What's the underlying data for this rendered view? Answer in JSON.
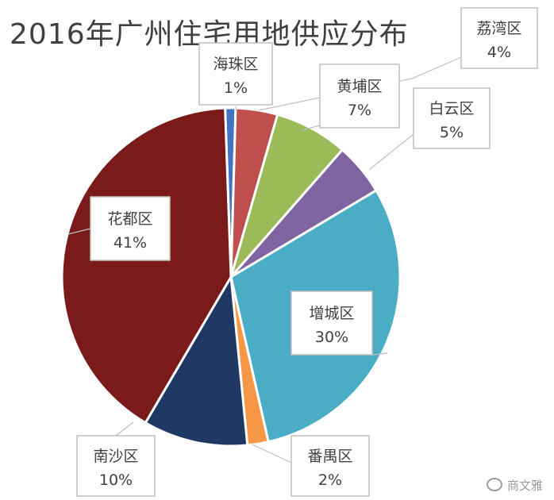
{
  "chart_data": {
    "type": "pie",
    "title": "2016年广州住宅用地供应分布",
    "categories": [
      "海珠区",
      "荔湾区",
      "黄埔区",
      "白云区",
      "增城区",
      "番禺区",
      "南沙区",
      "花都区"
    ],
    "values": [
      1,
      4,
      7,
      5,
      30,
      2,
      10,
      41
    ],
    "value_labels": [
      "1%",
      "4%",
      "7%",
      "5%",
      "30%",
      "2%",
      "10%",
      "41%"
    ],
    "unit": "%",
    "legend": "none",
    "colors": [
      "#4472c4",
      "#c0504d",
      "#9bbb59",
      "#8064a2",
      "#4bacc6",
      "#f79646",
      "#1f3864",
      "#7b1a1a"
    ]
  },
  "watermark": {
    "text": "商文雅",
    "icon": "wechat-icon"
  }
}
